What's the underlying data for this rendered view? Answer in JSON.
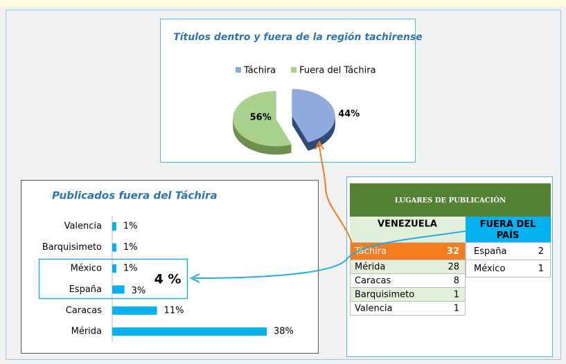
{
  "chart_data": [
    {
      "type": "pie",
      "title": "Títulos dentro y fuera de la región tachirense",
      "categories": [
        "Táchira",
        "Fuera del Táchira"
      ],
      "values": [
        44,
        56
      ],
      "value_labels": [
        "44%",
        "56%"
      ],
      "colors": [
        "#8faadc",
        "#a9d18e"
      ],
      "legend": "top"
    },
    {
      "type": "bar",
      "orientation": "horizontal",
      "title": "Publicados fuera del Táchira",
      "categories": [
        "Valencia",
        "Barquisimeto",
        "México",
        "España",
        "Caracas",
        "Mérida"
      ],
      "values": [
        1,
        1,
        1,
        3,
        11,
        38
      ],
      "value_labels": [
        "1%",
        "1%",
        "1%",
        "3%",
        "11%",
        "38%"
      ],
      "color": "#00b0f0"
    }
  ],
  "annotation": "4 %",
  "table": {
    "title": "LUGARES DE PUBLICACIÓN",
    "columns": [
      "VENEZUELA",
      "FUERA DEL PAÍS"
    ],
    "venezuela": [
      [
        "Táchira",
        32
      ],
      [
        "Mérida",
        28
      ],
      [
        "Caracas",
        8
      ],
      [
        "Barquisimeto",
        1
      ],
      [
        "Valencia",
        1
      ]
    ],
    "fuera": [
      [
        "España",
        2
      ],
      [
        "México",
        1
      ]
    ]
  }
}
